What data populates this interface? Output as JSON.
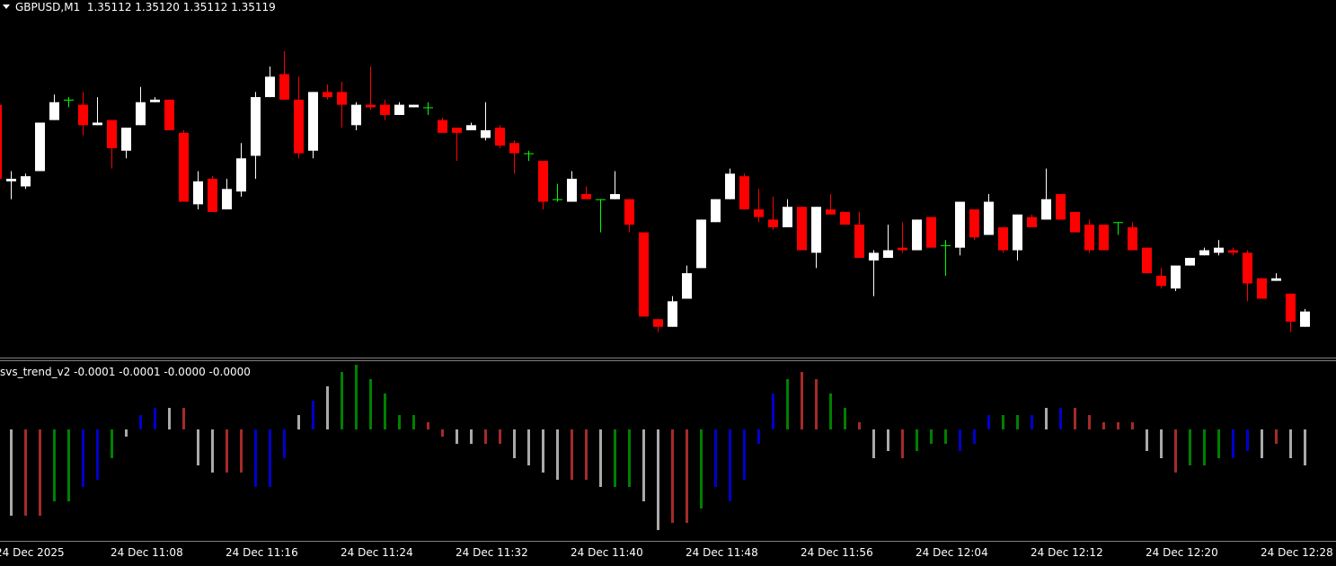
{
  "chart_data": [
    {
      "type": "candlestick",
      "title": "GBPUSD,M1  1.35112 1.35120 1.35112 1.35119",
      "categories": [
        "24 Dec 2025",
        null,
        null,
        null,
        null,
        null,
        null,
        null,
        "24 Dec 11:08",
        null,
        null,
        null,
        null,
        null,
        null,
        null,
        "24 Dec 11:16",
        null,
        null,
        null,
        null,
        null,
        null,
        null,
        "24 Dec 11:24",
        null,
        null,
        null,
        null,
        null,
        null,
        null,
        "24 Dec 11:32",
        null,
        null,
        null,
        null,
        null,
        null,
        null,
        "24 Dec 11:40",
        null,
        null,
        null,
        null,
        null,
        null,
        null,
        "24 Dec 11:48",
        null,
        null,
        null,
        null,
        null,
        null,
        null,
        "24 Dec 11:56",
        null,
        null,
        null,
        null,
        null,
        null,
        null,
        "24 Dec 12:04",
        null,
        null,
        null,
        null,
        null,
        null,
        null,
        "24 Dec 12:12",
        null,
        null,
        null,
        null,
        null,
        null,
        null,
        "24 Dec 12:20",
        null,
        null,
        null,
        null,
        null,
        null,
        null,
        "24 Dec 12:28",
        null,
        null,
        null
      ],
      "open": [
        1.35191,
        1.35161,
        1.35159,
        1.35165,
        1.35185,
        1.35193,
        1.35191,
        1.35183,
        1.35185,
        1.35173,
        1.35183,
        1.35192,
        1.35193,
        1.3518,
        1.35152,
        1.35162,
        1.3515,
        1.35157,
        1.35171,
        1.35194,
        1.35203,
        1.35193,
        1.35173,
        1.35196,
        1.35196,
        1.35183,
        1.35191,
        1.35191,
        1.35187,
        1.3519,
        1.3519,
        1.35185,
        1.35182,
        1.35181,
        1.35178,
        1.35182,
        1.35176,
        1.35172,
        1.35169,
        1.35154,
        1.35153,
        1.35156,
        1.35154,
        1.35154,
        1.35154,
        1.35141,
        1.35107,
        1.35104,
        1.35115,
        1.35127,
        1.35145,
        1.35154,
        1.35163,
        1.3515,
        1.35146,
        1.35143,
        1.35151,
        1.35133,
        1.3515,
        1.35149,
        1.35144,
        1.3513,
        1.35131,
        1.35135,
        1.35134,
        1.35147,
        1.35136,
        1.35135,
        1.3515,
        1.3514,
        1.35143,
        1.35134,
        1.35147,
        1.35146,
        1.35156,
        1.35149,
        1.35144,
        1.35144,
        1.35145,
        1.35143,
        1.35135,
        1.35124,
        1.35119,
        1.35128,
        1.35132,
        1.35133,
        1.35134,
        1.35133,
        1.35123,
        1.35122,
        1.35117,
        1.35104
      ],
      "high": [
        1.35192,
        1.35165,
        1.35164,
        1.35184,
        1.35195,
        1.35194,
        1.35196,
        1.35194,
        1.35185,
        1.35182,
        1.35198,
        1.35194,
        1.35193,
        1.35181,
        1.35165,
        1.35163,
        1.35162,
        1.35176,
        1.35196,
        1.35206,
        1.35212,
        1.35202,
        1.35196,
        1.35199,
        1.352,
        1.35192,
        1.35206,
        1.35193,
        1.35192,
        1.35191,
        1.35192,
        1.35186,
        1.35182,
        1.35184,
        1.35192,
        1.35183,
        1.35177,
        1.35173,
        1.35169,
        1.3516,
        1.35165,
        1.35159,
        1.35154,
        1.35165,
        1.35154,
        1.35141,
        1.35107,
        1.35116,
        1.35128,
        1.35146,
        1.35154,
        1.35166,
        1.35164,
        1.35158,
        1.35155,
        1.35154,
        1.35151,
        1.35151,
        1.35156,
        1.35149,
        1.35149,
        1.35134,
        1.35144,
        1.35145,
        1.35146,
        1.35147,
        1.35138,
        1.35153,
        1.3515,
        1.35156,
        1.35143,
        1.35148,
        1.35148,
        1.35166,
        1.35156,
        1.35149,
        1.35146,
        1.35144,
        1.35145,
        1.35145,
        1.35135,
        1.35127,
        1.35128,
        1.35131,
        1.35135,
        1.35138,
        1.35135,
        1.35134,
        1.35123,
        1.35125,
        1.35117,
        1.35111
      ],
      "low": [
        1.35161,
        1.35154,
        1.35158,
        1.35165,
        1.35185,
        1.3519,
        1.35179,
        1.35183,
        1.35166,
        1.3517,
        1.35183,
        1.35192,
        1.35181,
        1.35153,
        1.3515,
        1.35149,
        1.3515,
        1.35155,
        1.35162,
        1.35194,
        1.35193,
        1.3517,
        1.3517,
        1.35193,
        1.35182,
        1.35181,
        1.35189,
        1.35185,
        1.35187,
        1.3519,
        1.35187,
        1.3518,
        1.35169,
        1.35181,
        1.35177,
        1.35174,
        1.35164,
        1.35169,
        1.3515,
        1.35153,
        1.35153,
        1.35154,
        1.35141,
        1.35154,
        1.35141,
        1.35108,
        1.35102,
        1.35104,
        1.35115,
        1.35127,
        1.35145,
        1.35154,
        1.3515,
        1.35145,
        1.35142,
        1.35143,
        1.35134,
        1.35127,
        1.35148,
        1.35144,
        1.35131,
        1.35116,
        1.35131,
        1.35133,
        1.35134,
        1.35135,
        1.35124,
        1.35132,
        1.35138,
        1.3514,
        1.35133,
        1.3513,
        1.35143,
        1.35146,
        1.35146,
        1.35141,
        1.35133,
        1.35134,
        1.3514,
        1.35134,
        1.35125,
        1.35119,
        1.35118,
        1.35128,
        1.35132,
        1.35132,
        1.35132,
        1.35114,
        1.35115,
        1.35122,
        1.35102,
        1.35104
      ],
      "close": [
        1.35162,
        1.35162,
        1.35163,
        1.35184,
        1.35192,
        1.35193,
        1.35183,
        1.35184,
        1.35174,
        1.35182,
        1.35192,
        1.35193,
        1.35181,
        1.35153,
        1.35161,
        1.35149,
        1.35158,
        1.3517,
        1.35194,
        1.35202,
        1.35193,
        1.35172,
        1.35196,
        1.35194,
        1.35191,
        1.35191,
        1.3519,
        1.35187,
        1.35191,
        1.35191,
        1.3519,
        1.3518,
        1.3518,
        1.35183,
        1.35181,
        1.35175,
        1.35172,
        1.35172,
        1.35153,
        1.35154,
        1.35162,
        1.35154,
        1.35154,
        1.35156,
        1.35144,
        1.35108,
        1.35104,
        1.35114,
        1.35125,
        1.35146,
        1.35154,
        1.35164,
        1.3515,
        1.35147,
        1.35143,
        1.35151,
        1.35134,
        1.35151,
        1.35148,
        1.35144,
        1.35131,
        1.35133,
        1.35134,
        1.35134,
        1.35146,
        1.35135,
        1.35136,
        1.35153,
        1.35139,
        1.35153,
        1.35134,
        1.35148,
        1.35143,
        1.35154,
        1.35146,
        1.35141,
        1.35134,
        1.35134,
        1.35145,
        1.35134,
        1.35125,
        1.3512,
        1.35128,
        1.35131,
        1.35134,
        1.35135,
        1.35133,
        1.35121,
        1.35115,
        1.35123,
        1.35106,
        1.3511
      ],
      "ylim": [
        1.35093,
        1.35225
      ],
      "bull_color": "#ffffff",
      "bear_color": "#ff0000",
      "doji_color": "#00ff00"
    },
    {
      "type": "bar",
      "title": "svs_trend_v2 -0.0001 -0.0001 -0.0000 -0.0000",
      "values": [
        -1e-05,
        -0.00012,
        -0.00012,
        -0.00012,
        -0.0001,
        -0.0001,
        -8e-05,
        -7e-05,
        -4e-05,
        -1e-05,
        2e-05,
        3e-05,
        3e-05,
        3e-05,
        -5e-05,
        -6e-05,
        -6e-05,
        -6e-05,
        -8e-05,
        -8e-05,
        -4e-05,
        2e-05,
        4e-05,
        6e-05,
        8e-05,
        9e-05,
        7e-05,
        5e-05,
        2e-05,
        2e-05,
        1e-05,
        -1e-05,
        -2e-05,
        -2e-05,
        -2e-05,
        -2e-05,
        -4e-05,
        -5e-05,
        -6e-05,
        -7e-05,
        -7e-05,
        -7e-05,
        -8e-05,
        -8e-05,
        -8e-05,
        -0.0001,
        -0.00014,
        -0.00013,
        -0.00013,
        -0.00011,
        -8e-05,
        -0.0001,
        -7e-05,
        -2e-05,
        5e-05,
        7e-05,
        8e-05,
        7e-05,
        5e-05,
        3e-05,
        1e-05,
        -4e-05,
        -3e-05,
        -4e-05,
        -3e-05,
        -2e-05,
        -2e-05,
        -3e-05,
        -2e-05,
        2e-05,
        2e-05,
        2e-05,
        2e-05,
        3e-05,
        3e-05,
        3e-05,
        2e-05,
        1e-05,
        1e-05,
        1e-05,
        -3e-05,
        -4e-05,
        -6e-05,
        -5e-05,
        -5e-05,
        -4e-05,
        -4e-05,
        -3e-05,
        -4e-05,
        -2e-05,
        -4e-05,
        -5e-05
      ],
      "colors": [
        "#a52a2a",
        "#a9a9a9",
        "#a52a2a",
        "#a52a2a",
        "#008000",
        "#008000",
        "#0000cd",
        "#0000cd",
        "#008000",
        "#a9a9a9",
        "#0000cd",
        "#0000cd",
        "#a9a9a9",
        "#a52a2a",
        "#a9a9a9",
        "#a9a9a9",
        "#a52a2a",
        "#a52a2a",
        "#0000cd",
        "#0000cd",
        "#0000cd",
        "#a9a9a9",
        "#0000cd",
        "#a9a9a9",
        "#008000",
        "#008000",
        "#008000",
        "#008000",
        "#008000",
        "#008000",
        "#a52a2a",
        "#a52a2a",
        "#a9a9a9",
        "#a9a9a9",
        "#a52a2a",
        "#a52a2a",
        "#a9a9a9",
        "#a9a9a9",
        "#a9a9a9",
        "#a9a9a9",
        "#a52a2a",
        "#a52a2a",
        "#a9a9a9",
        "#008000",
        "#008000",
        "#a9a9a9",
        "#a9a9a9",
        "#a52a2a",
        "#a52a2a",
        "#008000",
        "#0000cd",
        "#0000cd",
        "#0000cd",
        "#0000cd",
        "#0000cd",
        "#008000",
        "#a52a2a",
        "#a52a2a",
        "#008000",
        "#008000",
        "#a52a2a",
        "#a9a9a9",
        "#a9a9a9",
        "#a52a2a",
        "#008000",
        "#008000",
        "#008000",
        "#0000cd",
        "#0000cd",
        "#0000cd",
        "#008000",
        "#008000",
        "#0000cd",
        "#a9a9a9",
        "#0000cd",
        "#a52a2a",
        "#a52a2a",
        "#a52a2a",
        "#a52a2a",
        "#a52a2a",
        "#a9a9a9",
        "#a9a9a9",
        "#a52a2a",
        "#008000",
        "#008000",
        "#008000",
        "#0000cd",
        "#0000cd",
        "#a9a9a9",
        "#a52a2a",
        "#a9a9a9",
        "#a9a9a9"
      ],
      "ylim": [
        -0.00015,
        0.0001
      ]
    }
  ]
}
